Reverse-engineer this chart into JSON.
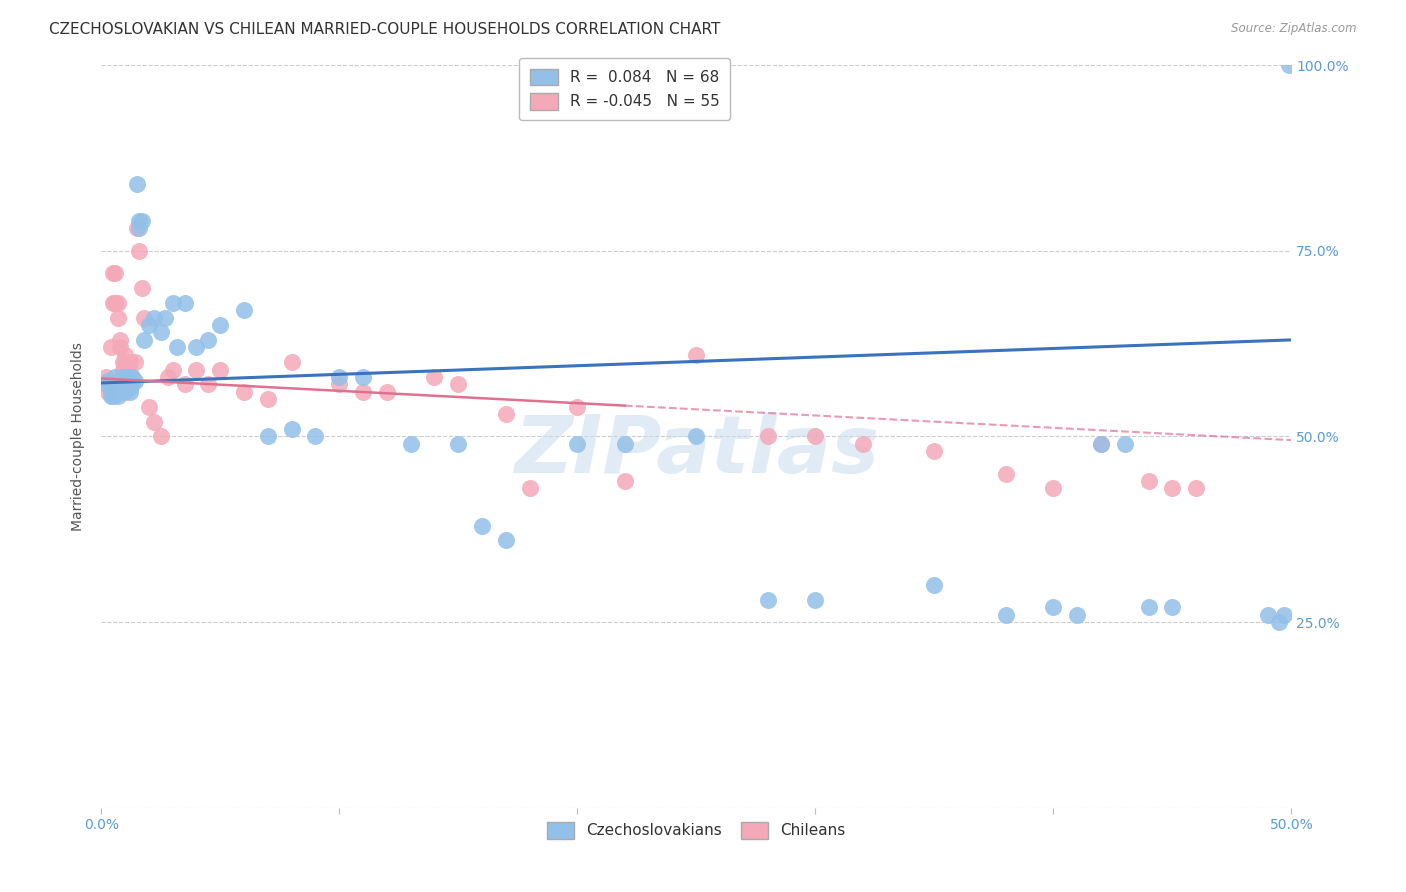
{
  "title": "CZECHOSLOVAKIAN VS CHILEAN MARRIED-COUPLE HOUSEHOLDS CORRELATION CHART",
  "source": "Source: ZipAtlas.com",
  "ylabel_text": "Married-couple Households",
  "watermark": "ZIPatlas",
  "blue_R": 0.084,
  "blue_N": 68,
  "pink_R": -0.045,
  "pink_N": 55,
  "xlim": [
    0.0,
    0.5
  ],
  "ylim": [
    0.0,
    1.0
  ],
  "blue_color": "#92C0E8",
  "pink_color": "#F4A8B8",
  "blue_line_color": "#3A72BD",
  "pink_line_color": "#E07090",
  "grid_color": "#CCCCCC",
  "background_color": "#FFFFFF",
  "title_fontsize": 11,
  "axis_label_fontsize": 10,
  "tick_fontsize": 10,
  "legend_fontsize": 11,
  "blue_x": [
    0.002,
    0.003,
    0.004,
    0.004,
    0.005,
    0.005,
    0.005,
    0.006,
    0.006,
    0.007,
    0.007,
    0.008,
    0.008,
    0.008,
    0.009,
    0.009,
    0.01,
    0.01,
    0.01,
    0.011,
    0.011,
    0.012,
    0.012,
    0.013,
    0.013,
    0.014,
    0.015,
    0.016,
    0.016,
    0.017,
    0.018,
    0.02,
    0.022,
    0.025,
    0.027,
    0.03,
    0.032,
    0.035,
    0.04,
    0.045,
    0.05,
    0.06,
    0.07,
    0.08,
    0.09,
    0.1,
    0.11,
    0.13,
    0.15,
    0.16,
    0.17,
    0.2,
    0.22,
    0.25,
    0.28,
    0.3,
    0.35,
    0.38,
    0.4,
    0.41,
    0.42,
    0.43,
    0.44,
    0.45,
    0.49,
    0.495,
    0.497,
    0.499
  ],
  "blue_y": [
    0.57,
    0.575,
    0.555,
    0.56,
    0.555,
    0.565,
    0.57,
    0.56,
    0.58,
    0.555,
    0.57,
    0.56,
    0.57,
    0.575,
    0.565,
    0.58,
    0.56,
    0.565,
    0.57,
    0.575,
    0.58,
    0.56,
    0.565,
    0.57,
    0.58,
    0.575,
    0.84,
    0.79,
    0.78,
    0.79,
    0.63,
    0.65,
    0.66,
    0.64,
    0.66,
    0.68,
    0.62,
    0.68,
    0.62,
    0.63,
    0.65,
    0.67,
    0.5,
    0.51,
    0.5,
    0.58,
    0.58,
    0.49,
    0.49,
    0.38,
    0.36,
    0.49,
    0.49,
    0.5,
    0.28,
    0.28,
    0.3,
    0.26,
    0.27,
    0.26,
    0.49,
    0.49,
    0.27,
    0.27,
    0.26,
    0.25,
    0.26,
    1.0
  ],
  "pink_x": [
    0.002,
    0.003,
    0.004,
    0.005,
    0.005,
    0.006,
    0.006,
    0.007,
    0.007,
    0.008,
    0.008,
    0.009,
    0.009,
    0.01,
    0.01,
    0.011,
    0.012,
    0.013,
    0.014,
    0.015,
    0.016,
    0.017,
    0.018,
    0.02,
    0.022,
    0.025,
    0.028,
    0.03,
    0.035,
    0.04,
    0.045,
    0.05,
    0.06,
    0.07,
    0.08,
    0.1,
    0.11,
    0.12,
    0.14,
    0.15,
    0.17,
    0.18,
    0.2,
    0.22,
    0.25,
    0.28,
    0.3,
    0.32,
    0.35,
    0.38,
    0.4,
    0.42,
    0.44,
    0.45,
    0.46
  ],
  "pink_y": [
    0.58,
    0.56,
    0.62,
    0.68,
    0.72,
    0.68,
    0.72,
    0.66,
    0.68,
    0.63,
    0.62,
    0.6,
    0.59,
    0.6,
    0.61,
    0.59,
    0.6,
    0.58,
    0.6,
    0.78,
    0.75,
    0.7,
    0.66,
    0.54,
    0.52,
    0.5,
    0.58,
    0.59,
    0.57,
    0.59,
    0.57,
    0.59,
    0.56,
    0.55,
    0.6,
    0.57,
    0.56,
    0.56,
    0.58,
    0.57,
    0.53,
    0.43,
    0.54,
    0.44,
    0.61,
    0.5,
    0.5,
    0.49,
    0.48,
    0.45,
    0.43,
    0.49,
    0.44,
    0.43,
    0.43
  ]
}
